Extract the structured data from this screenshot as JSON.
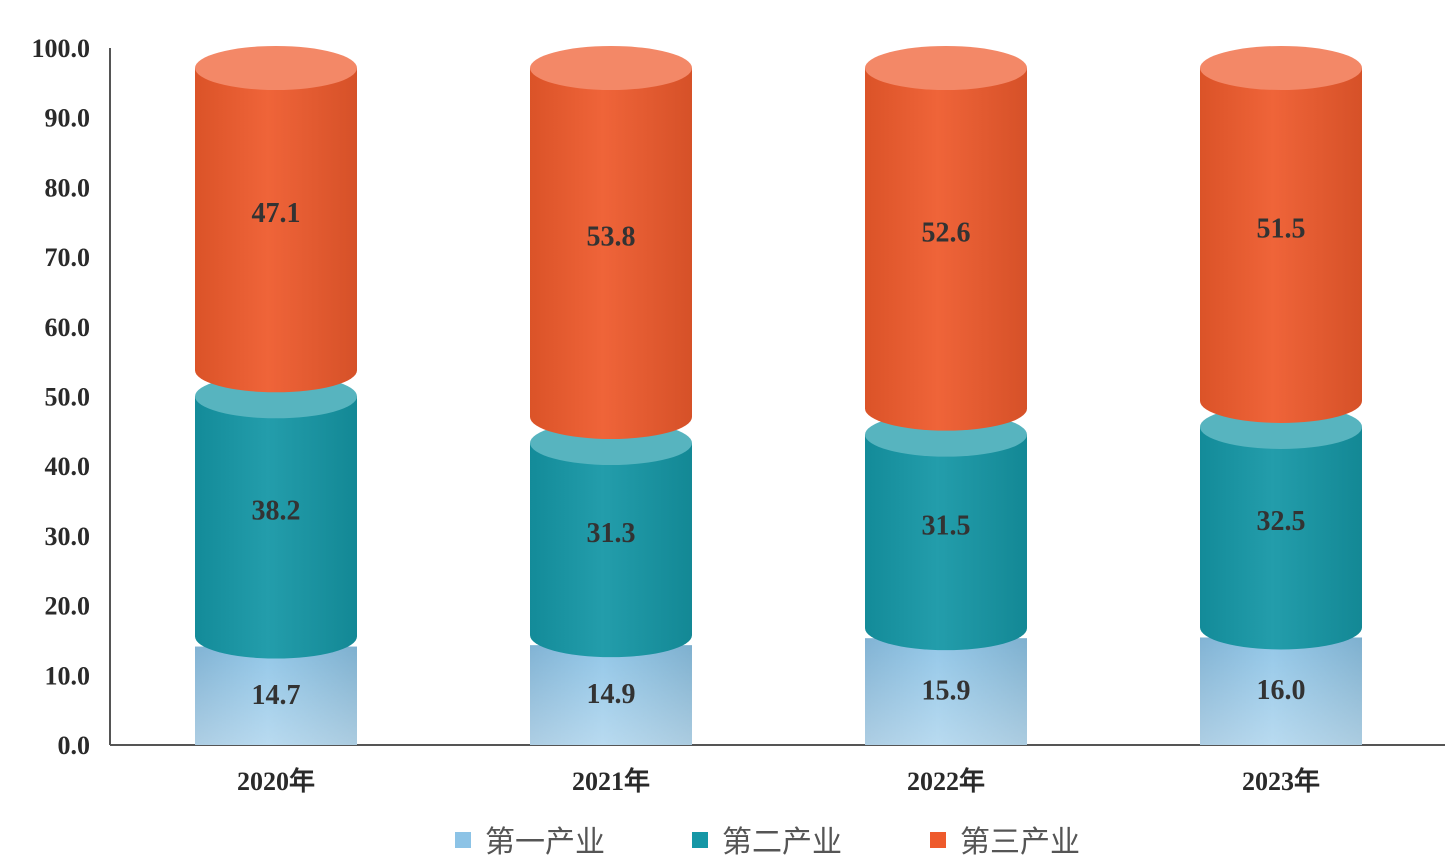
{
  "chart_data": {
    "type": "bar",
    "stacked": true,
    "style": "3d-cylinder",
    "title": "",
    "xlabel": "",
    "ylabel": "",
    "ylim": [
      0,
      100
    ],
    "yticks": [
      "0.0",
      "10.0",
      "20.0",
      "30.0",
      "40.0",
      "50.0",
      "60.0",
      "70.0",
      "80.0",
      "90.0",
      "100.0"
    ],
    "categories": [
      "2020年",
      "2021年",
      "2022年",
      "2023年"
    ],
    "series": [
      {
        "name": "第一产业",
        "color": "#8cc3e6",
        "values": [
          14.7,
          14.9,
          15.9,
          16.0
        ],
        "labels": [
          "14.7",
          "14.9",
          "15.9",
          "16.0"
        ]
      },
      {
        "name": "第二产业",
        "color": "#1597a6",
        "values": [
          38.2,
          31.3,
          31.5,
          32.5
        ],
        "labels": [
          "38.2",
          "31.3",
          "31.5",
          "32.5"
        ]
      },
      {
        "name": "第三产业",
        "color": "#ee5a2c",
        "values": [
          47.1,
          53.8,
          52.6,
          51.5
        ],
        "labels": [
          "47.1",
          "53.8",
          "52.6",
          "51.5"
        ]
      }
    ],
    "grid": false,
    "legend": "bottom"
  }
}
